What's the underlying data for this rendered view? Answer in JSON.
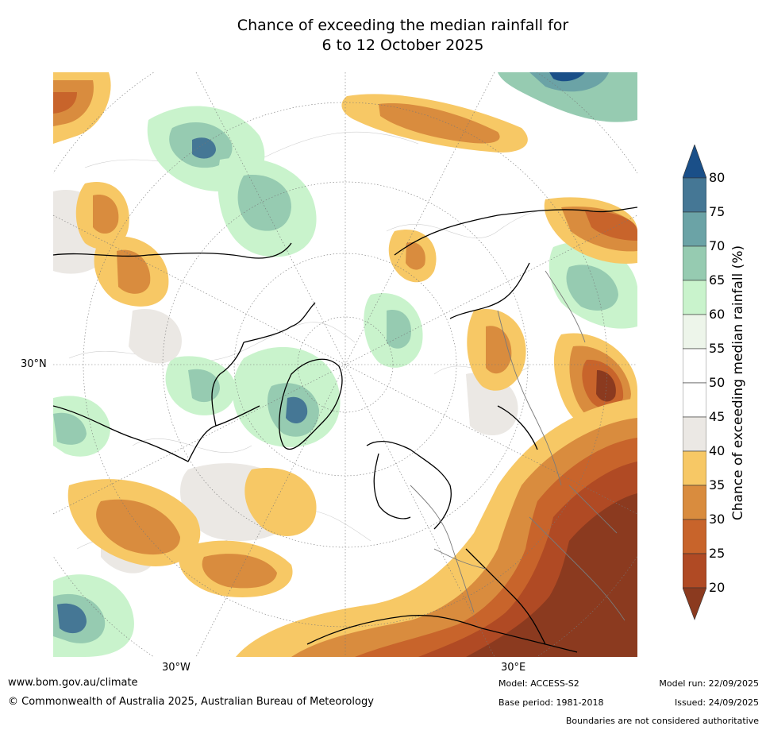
{
  "title_line1": "Chance of exceeding the median rainfall for",
  "title_line2": "6 to 12 October 2025",
  "map": {
    "lat_label": "30°N",
    "lon_labels": [
      "30°W",
      "30°E"
    ],
    "colors": {
      "20": "#8b3a1f",
      "25": "#b04a24",
      "30": "#c8642b",
      "35": "#d98c3e",
      "40": "#f7c865",
      "45": "#ebe8e4",
      "55": "#edf5ea",
      "60": "#c9f3cc",
      "65": "#96cbb1",
      "70": "#6ba3a6",
      "75": "#457795",
      "80": "#1a4f88"
    }
  },
  "colorbar": {
    "label": "Chance of exceeding median rainfall (%)",
    "ticks": [
      "80",
      "75",
      "70",
      "65",
      "60",
      "55",
      "50",
      "45",
      "40",
      "35",
      "30",
      "25",
      "20"
    ]
  },
  "footer": {
    "website": "www.bom.gov.au/climate",
    "copyright": "© Commonwealth of Australia 2025, Australian Bureau of Meteorology",
    "model": "Model: ACCESS-S2",
    "base_period": "Base period: 1981-2018",
    "model_run": "Model run: 22/09/2025",
    "issued": "Issued: 24/09/2025",
    "disclaimer": "Boundaries are not considered authoritative"
  }
}
